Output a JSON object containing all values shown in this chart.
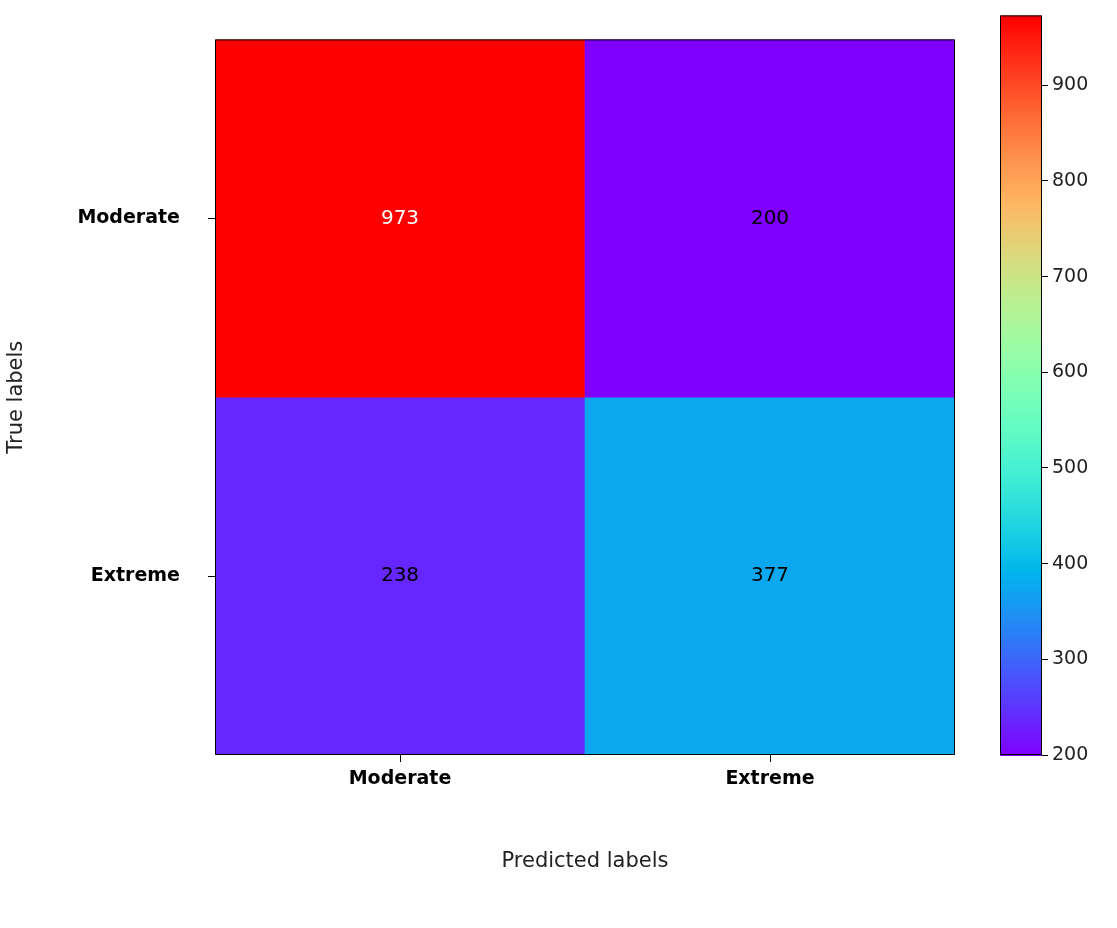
{
  "chart_data": {
    "type": "heatmap",
    "xlabel": "Predicted labels",
    "ylabel": "True labels",
    "categories": [
      "Moderate",
      "Extreme"
    ],
    "y_categories": [
      "Moderate",
      "Extreme"
    ],
    "cells": [
      [
        973,
        200
      ],
      [
        238,
        377
      ]
    ],
    "clim": [
      200,
      973
    ],
    "cticks": [
      200,
      300,
      400,
      500,
      600,
      700,
      800,
      900
    ],
    "data_labels": true
  }
}
